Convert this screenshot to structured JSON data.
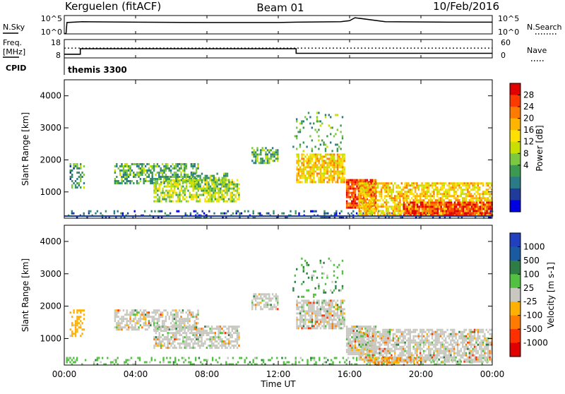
{
  "header": {
    "station": "Kerguelen (fitACF)",
    "beam": "Beam 01",
    "date": "10/Feb/2016"
  },
  "noise_panel": {
    "left_label": "N.Sky",
    "right_label": "N.Search",
    "left_ticks": [
      "10^5",
      "10^0"
    ],
    "right_ticks": [
      "10^5",
      "10^0"
    ]
  },
  "freq_panel": {
    "left_label_line1": "Freq.",
    "left_label_line2": "[MHz]",
    "left_ticks": [
      "18",
      "8"
    ],
    "right_label": "Nave",
    "right_ticks": [
      "60",
      "0"
    ],
    "cpid_label": "CPID",
    "cpid_value": "themis 3300"
  },
  "power_panel": {
    "ylabel": "Slant Range [km]",
    "colorbar_label": "Power [dB]",
    "colorbar_ticks": [
      "28",
      "24",
      "20",
      "16",
      "12",
      "8",
      "4"
    ],
    "colorbar_colors": [
      "#e00000",
      "#ff3a00",
      "#ff7a00",
      "#ffb400",
      "#ffe000",
      "#c8e000",
      "#7cc840",
      "#3c9a50",
      "#2a7a88",
      "#1f3c9c",
      "#0000e0"
    ]
  },
  "velocity_panel": {
    "ylabel": "Slant Range [km]",
    "colorbar_label": "Velocity [m s-1]",
    "colorbar_ticks": [
      "1000",
      "500",
      "100",
      "25",
      "-25",
      "-100",
      "-500",
      "-1000"
    ],
    "colorbar_colors": [
      "#2040c0",
      "#1a5aa0",
      "#2e7d46",
      "#52c040",
      "#c8c8c0",
      "#ffb000",
      "#ff7a00",
      "#ff3000",
      "#e00000"
    ]
  },
  "x_axis": {
    "label": "Time UT",
    "ticks": [
      "00:00",
      "04:00",
      "08:00",
      "12:00",
      "16:00",
      "20:00",
      "00:00"
    ]
  },
  "chart_data": [
    {
      "type": "line",
      "title": "N.Sky / N.Search",
      "x_unit": "hours UT",
      "xlim": [
        0,
        24
      ],
      "ylim": [
        0,
        5
      ],
      "yscale": "log10 (10^0 to 10^5)",
      "series": [
        {
          "name": "N.Sky",
          "x": [
            0,
            0.1,
            0.15,
            1,
            4,
            8,
            12,
            13,
            15.5,
            16,
            16.3,
            18,
            22,
            24
          ],
          "y": [
            0.1,
            0.1,
            3.1,
            3.3,
            3.2,
            3.1,
            3.1,
            3.2,
            3.3,
            3.6,
            4.4,
            3.3,
            3.2,
            3.2
          ]
        }
      ]
    },
    {
      "type": "line",
      "title": "Freq. / Nave",
      "x_unit": "hours UT",
      "xlim": [
        0,
        24
      ],
      "ylim_freq_mhz": [
        8,
        18
      ],
      "ylim_nave": [
        0,
        60
      ],
      "series": [
        {
          "name": "Freq.",
          "x": [
            0,
            0.9,
            0.9,
            13,
            13,
            24
          ],
          "y": [
            10,
            10,
            13,
            13,
            10.5,
            10.5
          ]
        },
        {
          "name": "Nave",
          "x": [
            0,
            24
          ],
          "y": [
            32,
            32
          ]
        }
      ]
    },
    {
      "type": "heatmap",
      "title": "Power [dB]",
      "x_unit": "hours UT",
      "xlim": [
        0,
        24
      ],
      "y_unit": "km",
      "ylim": [
        180,
        4500
      ],
      "zlim": [
        0,
        32
      ],
      "regions": [
        {
          "t0": 0.1,
          "t1": 24,
          "r0": 180,
          "r1": 430,
          "z": 6,
          "density": 0.25
        },
        {
          "t0": 0.3,
          "t1": 1.1,
          "r0": 1100,
          "r1": 1900,
          "z": 10,
          "density": 0.4
        },
        {
          "t0": 2.8,
          "t1": 7.5,
          "r0": 1300,
          "r1": 1900,
          "z": 11,
          "density": 0.6
        },
        {
          "t0": 5.0,
          "t1": 9.8,
          "r0": 700,
          "r1": 1400,
          "z": 15,
          "density": 0.65
        },
        {
          "t0": 7.2,
          "t1": 9.2,
          "r0": 1100,
          "r1": 1600,
          "z": 12,
          "density": 0.5
        },
        {
          "t0": 10.5,
          "t1": 12.0,
          "r0": 1900,
          "r1": 2400,
          "z": 11,
          "density": 0.6
        },
        {
          "t0": 13.0,
          "t1": 15.7,
          "r0": 1300,
          "r1": 2200,
          "z": 20,
          "density": 0.75
        },
        {
          "t0": 12.8,
          "t1": 15.6,
          "r0": 2300,
          "r1": 3500,
          "z": 11,
          "density": 0.12
        },
        {
          "t0": 15.8,
          "t1": 17.5,
          "r0": 500,
          "r1": 1400,
          "z": 27,
          "density": 0.85
        },
        {
          "t0": 16.5,
          "t1": 24.0,
          "r0": 300,
          "r1": 1300,
          "z": 20,
          "density": 0.7
        },
        {
          "t0": 19.0,
          "t1": 24.0,
          "r0": 250,
          "r1": 700,
          "z": 28,
          "density": 0.8
        }
      ]
    },
    {
      "type": "heatmap",
      "title": "Velocity [m s-1]",
      "x_unit": "hours UT",
      "xlim": [
        0,
        24
      ],
      "y_unit": "km",
      "ylim": [
        180,
        4500
      ],
      "zlim": [
        -1000,
        1000
      ],
      "regions": [
        {
          "t0": 0.1,
          "t1": 24,
          "r0": 180,
          "r1": 430,
          "z": 60,
          "density": 0.25
        },
        {
          "t0": 0.3,
          "t1": 1.1,
          "r0": 1100,
          "r1": 1900,
          "z": -60,
          "density": 0.4
        },
        {
          "t0": 2.8,
          "t1": 7.5,
          "r0": 1300,
          "r1": 1900,
          "z": 0,
          "density": 0.6
        },
        {
          "t0": 5.0,
          "t1": 9.8,
          "r0": 700,
          "r1": 1400,
          "z": 0,
          "density": 0.65
        },
        {
          "t0": 10.5,
          "t1": 12.0,
          "r0": 1900,
          "r1": 2400,
          "z": 0,
          "density": 0.6
        },
        {
          "t0": 13.0,
          "t1": 15.7,
          "r0": 1300,
          "r1": 2200,
          "z": 0,
          "density": 0.75
        },
        {
          "t0": 12.8,
          "t1": 15.6,
          "r0": 2300,
          "r1": 3500,
          "z": 80,
          "density": 0.12
        },
        {
          "t0": 15.8,
          "t1": 17.5,
          "r0": 500,
          "r1": 1400,
          "z": 0,
          "density": 0.85
        },
        {
          "t0": 16.5,
          "t1": 24.0,
          "r0": 300,
          "r1": 1300,
          "z": 0,
          "density": 0.7
        },
        {
          "t0": 17.0,
          "t1": 20.0,
          "r0": 200,
          "r1": 420,
          "z": -150,
          "density": 0.35
        }
      ]
    }
  ]
}
